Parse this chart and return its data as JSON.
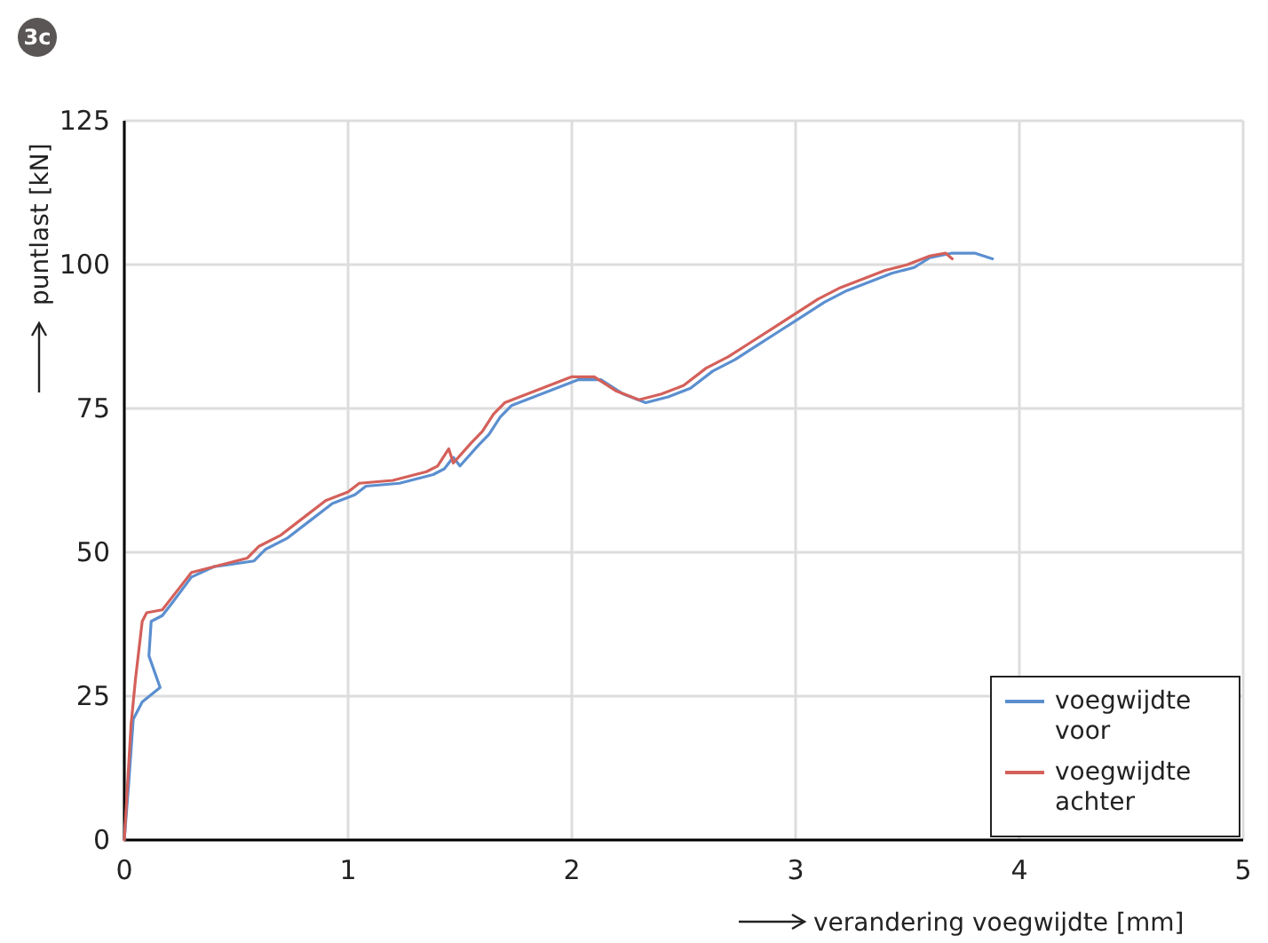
{
  "chart_data": {
    "type": "line",
    "xlabel": "verandering voegwijdte [mm]",
    "ylabel": "puntlast [kN]",
    "annotations": [
      "3c"
    ],
    "xlim": [
      0,
      5
    ],
    "xticks": [
      0,
      1,
      2,
      3,
      4,
      5
    ],
    "ylim": [
      0,
      125
    ],
    "yticks": [
      0,
      25,
      50,
      75,
      100,
      125
    ],
    "grid": true,
    "legend": "bottom right",
    "line_style": "solid",
    "marker": "none",
    "series": [
      {
        "name": "voegwijdte voor",
        "color": "#5b8fd0",
        "x": [
          0,
          0.02,
          0.04,
          0.08,
          0.16,
          0.11,
          0.12,
          0.17,
          0.21,
          0.3,
          0.4,
          0.58,
          0.63,
          0.73,
          0.83,
          0.93,
          1.03,
          1.08,
          1.23,
          1.38,
          1.43,
          1.47,
          1.5,
          1.58,
          1.63,
          1.68,
          1.73,
          1.83,
          1.93,
          2.03,
          2.13,
          2.23,
          2.33,
          2.43,
          2.53,
          2.63,
          2.73,
          2.83,
          2.93,
          3.03,
          3.13,
          3.23,
          3.33,
          3.43,
          3.53,
          3.6,
          3.7,
          3.8,
          3.88
        ],
        "values": [
          0,
          10,
          21,
          24,
          26.5,
          32,
          38,
          39,
          41,
          45.7,
          47.5,
          48.5,
          50.5,
          52.5,
          55.5,
          58.5,
          60,
          61.5,
          62,
          63.5,
          64.5,
          66.5,
          65,
          68.5,
          70.5,
          73.5,
          75.5,
          77,
          78.5,
          80,
          80,
          77.5,
          76,
          77,
          78.5,
          81.5,
          83.5,
          86,
          88.5,
          91,
          93.5,
          95.5,
          97,
          98.5,
          99.5,
          101.2,
          102,
          102,
          101
        ]
      },
      {
        "name": "voegwijdte achter",
        "color": "#d4605a",
        "x": [
          0,
          0.03,
          0.05,
          0.08,
          0.1,
          0.17,
          0.25,
          0.3,
          0.4,
          0.55,
          0.6,
          0.7,
          0.8,
          0.9,
          1.0,
          1.05,
          1.2,
          1.35,
          1.4,
          1.45,
          1.47,
          1.55,
          1.6,
          1.65,
          1.7,
          1.8,
          1.9,
          2.0,
          2.1,
          2.2,
          2.3,
          2.4,
          2.5,
          2.6,
          2.7,
          2.8,
          2.9,
          3.0,
          3.1,
          3.2,
          3.3,
          3.4,
          3.5,
          3.6,
          3.67,
          3.7
        ],
        "values": [
          0,
          20,
          28,
          38,
          39.5,
          40,
          44,
          46.5,
          47.5,
          49,
          51,
          53,
          56,
          59,
          60.5,
          62,
          62.5,
          64,
          65,
          68,
          65.5,
          69,
          71,
          74,
          76,
          77.5,
          79,
          80.5,
          80.5,
          78,
          76.5,
          77.5,
          79,
          82,
          84,
          86.5,
          89,
          91.5,
          94,
          96,
          97.5,
          99,
          100,
          101.5,
          102,
          101
        ]
      }
    ]
  }
}
